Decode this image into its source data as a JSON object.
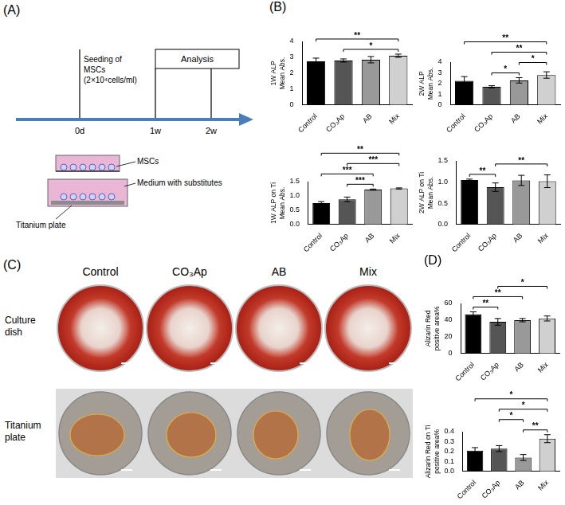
{
  "schematic": {
    "panel": "(A)",
    "seeding": [
      "Seeding of",
      "MSCs",
      "(2×10⁴cells/ml)"
    ],
    "analysis": "Analysis",
    "timepoints": [
      "0d",
      "1w",
      "2w"
    ],
    "labels": {
      "cells": "MSCs",
      "medium": "Medium with substitutes",
      "plate": "Titanium plate"
    }
  },
  "photos": {
    "panel": "(C)",
    "columns": [
      "Control",
      "CO₃Ap",
      "AB",
      "Mix"
    ],
    "rows": [
      "Culture dish",
      "Titanium plate"
    ]
  },
  "chart_data": [
    {
      "panel": "(B)",
      "type": "bar",
      "y_label": [
        "1W ALP",
        "Mean Abs."
      ],
      "categories": [
        "Control",
        "CO₃Ap",
        "AB",
        "Mix"
      ],
      "values": [
        2.75,
        2.8,
        2.85,
        3.1
      ],
      "errors": [
        0.2,
        0.1,
        0.2,
        0.1
      ],
      "colors": [
        "#000000",
        "#555555",
        "#999999",
        "#d0d0d0"
      ],
      "ylim": [
        0,
        4
      ],
      "yticks": [
        0,
        1,
        2,
        3,
        4
      ],
      "grid": false,
      "significance": [
        {
          "from": "Control",
          "to": "Mix",
          "label": "**"
        },
        {
          "from": "CO₃Ap",
          "to": "Mix",
          "label": "*"
        }
      ]
    },
    {
      "panel": "(B)",
      "type": "bar",
      "y_label": [
        "2W ALP",
        "Mean Abs."
      ],
      "categories": [
        "Control",
        "CO₃Ap",
        "AB",
        "Mix"
      ],
      "values": [
        2.25,
        1.7,
        2.3,
        2.8
      ],
      "errors": [
        0.4,
        0.1,
        0.25,
        0.3
      ],
      "colors": [
        "#000000",
        "#555555",
        "#999999",
        "#d0d0d0"
      ],
      "ylim": [
        0,
        4
      ],
      "yticks": [
        0,
        1,
        2,
        3,
        4
      ],
      "grid": false,
      "significance": [
        {
          "from": "Control",
          "to": "Mix",
          "label": "**"
        },
        {
          "from": "CO₃Ap",
          "to": "AB",
          "label": "*"
        },
        {
          "from": "CO₃Ap",
          "to": "Mix",
          "label": "**"
        },
        {
          "from": "AB",
          "to": "Mix",
          "label": "*"
        }
      ]
    },
    {
      "panel": "(B)",
      "type": "bar",
      "y_label": [
        "1W ALP on Ti",
        "Mean Abs."
      ],
      "categories": [
        "Control",
        "CO₃Ap",
        "AB",
        "Mix"
      ],
      "values": [
        0.75,
        0.88,
        1.22,
        1.26
      ],
      "errors": [
        0.05,
        0.08,
        0.02,
        0.02
      ],
      "colors": [
        "#000000",
        "#555555",
        "#999999",
        "#d0d0d0"
      ],
      "ylim": [
        0,
        1.5
      ],
      "yticks": [
        {
          "value": 0,
          "label": "0.0"
        },
        0.5,
        {
          "value": 1,
          "label": "1.0"
        },
        1.5
      ],
      "grid": false,
      "significance": [
        {
          "from": "Control",
          "to": "Mix",
          "label": "**"
        },
        {
          "from": "Control",
          "to": "AB",
          "label": "***"
        },
        {
          "from": "CO₃Ap",
          "to": "Mix",
          "label": "***"
        },
        {
          "from": "CO₃Ap",
          "to": "AB",
          "label": "***"
        }
      ]
    },
    {
      "panel": "(B)",
      "type": "bar",
      "y_label": [
        "2W ALP on Ti",
        "Mean Abs."
      ],
      "categories": [
        "Control",
        "CO₃Ap",
        "AB",
        "Mix"
      ],
      "values": [
        1.05,
        0.88,
        1.04,
        1.02
      ],
      "errors": [
        0.02,
        0.1,
        0.12,
        0.15
      ],
      "colors": [
        "#000000",
        "#555555",
        "#999999",
        "#d0d0d0"
      ],
      "ylim": [
        0,
        1.5
      ],
      "yticks": [
        {
          "value": 0,
          "label": "0.0"
        },
        0.5,
        {
          "value": 1,
          "label": "1.0"
        },
        1.5
      ],
      "grid": false,
      "significance": [
        {
          "from": "Control",
          "to": "CO₃Ap",
          "label": "**"
        },
        {
          "from": "CO₃Ap",
          "to": "Mix",
          "label": "**"
        }
      ]
    },
    {
      "panel": "(D)",
      "type": "bar",
      "y_label": [
        "Alizarin Red",
        "positive area%"
      ],
      "categories": [
        "Control",
        "CO₃Ap",
        "AB",
        "Mix"
      ],
      "values": [
        47,
        38,
        40,
        42
      ],
      "errors": [
        3,
        4,
        2,
        3
      ],
      "colors": [
        "#000000",
        "#555555",
        "#999999",
        "#d0d0d0"
      ],
      "ylim": [
        0,
        60
      ],
      "yticks": [
        0,
        20,
        40,
        60
      ],
      "grid": false,
      "significance": [
        {
          "from": "Control",
          "to": "AB",
          "label": "**"
        },
        {
          "from": "Control",
          "to": "CO₃Ap",
          "label": "**"
        },
        {
          "from": "CO₃Ap",
          "to": "Mix",
          "label": "*"
        }
      ]
    },
    {
      "panel": "(D)",
      "type": "bar",
      "y_label": [
        "Alizarin Red on Ti",
        "positive area%"
      ],
      "categories": [
        "Control",
        "CO₃Ap",
        "AB",
        "Mix"
      ],
      "values": [
        0.21,
        0.23,
        0.14,
        0.33
      ],
      "errors": [
        0.03,
        0.03,
        0.03,
        0.04
      ],
      "colors": [
        "#000000",
        "#555555",
        "#999999",
        "#d0d0d0"
      ],
      "ylim": [
        0,
        0.4
      ],
      "yticks": [
        {
          "value": 0,
          "label": "0.0"
        },
        0.1,
        0.2,
        0.3,
        0.4
      ],
      "grid": false,
      "significance": [
        {
          "from": "Control",
          "to": "Mix",
          "label": "*"
        },
        {
          "from": "CO₃Ap",
          "to": "Mix",
          "label": "*"
        },
        {
          "from": "AB",
          "to": "Mix",
          "label": "**"
        },
        {
          "from": "CO₃Ap",
          "to": "AB",
          "label": "*"
        }
      ]
    }
  ]
}
